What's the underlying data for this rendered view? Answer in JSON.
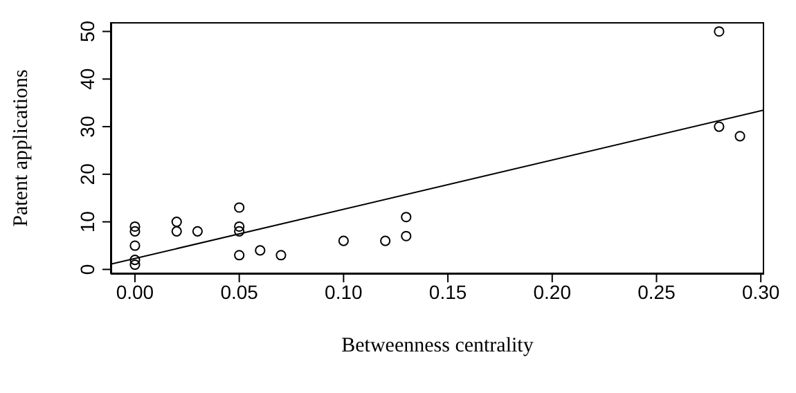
{
  "chart_data": {
    "type": "scatter",
    "xlabel": "Betweenness centrality",
    "ylabel": "Patent applications",
    "xlim": [
      -0.0116,
      0.3016
    ],
    "ylim": [
      -0.96,
      51.96
    ],
    "xticks": [
      {
        "value": 0,
        "label": "0.00"
      },
      {
        "value": 0.05,
        "label": "0.05"
      },
      {
        "value": 0.1,
        "label": "0.10"
      },
      {
        "value": 0.15,
        "label": "0.15"
      },
      {
        "value": 0.2,
        "label": "0.20"
      },
      {
        "value": 0.25,
        "label": "0.25"
      },
      {
        "value": 0.3,
        "label": "0.30"
      }
    ],
    "yticks": [
      0,
      10,
      20,
      30,
      40,
      50
    ],
    "series": [
      {
        "marker": "circle",
        "color": "#000000",
        "x": [
          0,
          0,
          0,
          0,
          0,
          0.02,
          0.02,
          0.03,
          0.05,
          0.05,
          0.05,
          0.05,
          0.06,
          0.07,
          0.1,
          0.12,
          0.13,
          0.13,
          0.28,
          0.28,
          0.29
        ],
        "values": [
          9,
          8,
          5,
          2,
          1,
          10,
          8,
          8,
          13,
          9,
          8,
          3,
          4,
          3,
          6,
          6,
          11,
          7,
          50,
          30,
          28
        ]
      },
      {
        "type": "line",
        "marker": "none",
        "color": "#000000",
        "x": [
          -0.0116,
          0.3016
        ],
        "values": [
          1.1,
          33.5
        ]
      }
    ]
  }
}
